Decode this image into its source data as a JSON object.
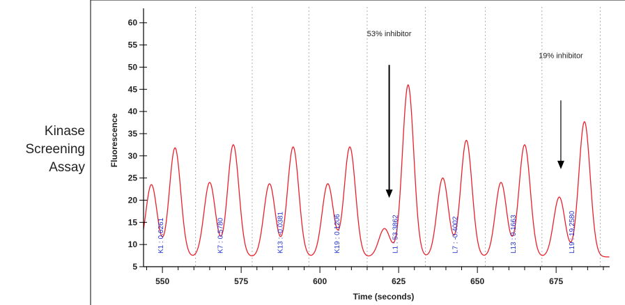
{
  "side_label": {
    "lines": [
      "Kinase",
      "Screening",
      "Assay"
    ]
  },
  "chart_data": {
    "type": "line",
    "title": "",
    "xlabel": "Time (seconds)",
    "ylabel": "Fluorescence",
    "xlim": [
      544,
      692
    ],
    "ylim": [
      5,
      62
    ],
    "x_ticks": [
      550,
      575,
      600,
      625,
      650,
      675
    ],
    "y_ticks": [
      5,
      10,
      15,
      20,
      25,
      30,
      35,
      40,
      45,
      50,
      55,
      60
    ],
    "grid": "vertical dashed separators",
    "line_color": "#e8202a",
    "label_color": "#2233cc",
    "separators_x": [
      560.5,
      578.5,
      596.5,
      615,
      633.5,
      652.5,
      670.5,
      689
    ],
    "baseline": 7.2,
    "peaks": [
      {
        "x": 546.5,
        "y": 23.5
      },
      {
        "x": 554.0,
        "y": 31.8
      },
      {
        "x": 565.0,
        "y": 24.0
      },
      {
        "x": 572.5,
        "y": 32.5
      },
      {
        "x": 584.0,
        "y": 23.7
      },
      {
        "x": 591.5,
        "y": 32.0
      },
      {
        "x": 602.5,
        "y": 23.7
      },
      {
        "x": 609.5,
        "y": 32.0
      },
      {
        "x": 620.5,
        "y": 13.6
      },
      {
        "x": 628.0,
        "y": 46.0
      },
      {
        "x": 639.0,
        "y": 25.0
      },
      {
        "x": 646.5,
        "y": 33.5
      },
      {
        "x": 657.5,
        "y": 24.0
      },
      {
        "x": 665.0,
        "y": 32.5
      },
      {
        "x": 676.0,
        "y": 20.7
      },
      {
        "x": 684.0,
        "y": 37.7
      }
    ],
    "well_labels": [
      {
        "well": "K1",
        "value": "0.6261",
        "x": 549.5
      },
      {
        "well": "K7",
        "value": "0.5780",
        "x": 568.5
      },
      {
        "well": "K13",
        "value": "-0.0381",
        "x": 587.5
      },
      {
        "well": "K19",
        "value": "0.1206",
        "x": 605.5
      },
      {
        "well": "L1",
        "value": "53.3862",
        "x": 624.0
      },
      {
        "well": "L7",
        "value": "-0.4002",
        "x": 643.0
      },
      {
        "well": "L13",
        "value": "0.1663",
        "x": 661.5
      },
      {
        "well": "L19",
        "value": "19.2580",
        "x": 680.0
      }
    ],
    "annotations": [
      {
        "text": "53% inhibitor",
        "x": 622,
        "y_text": 57,
        "arrow_from": 50.5,
        "arrow_to": 20.5
      },
      {
        "text": "19% inhibitor",
        "x": 676.5,
        "y_text": 52,
        "arrow_from": 42.5,
        "arrow_to": 27
      }
    ]
  }
}
